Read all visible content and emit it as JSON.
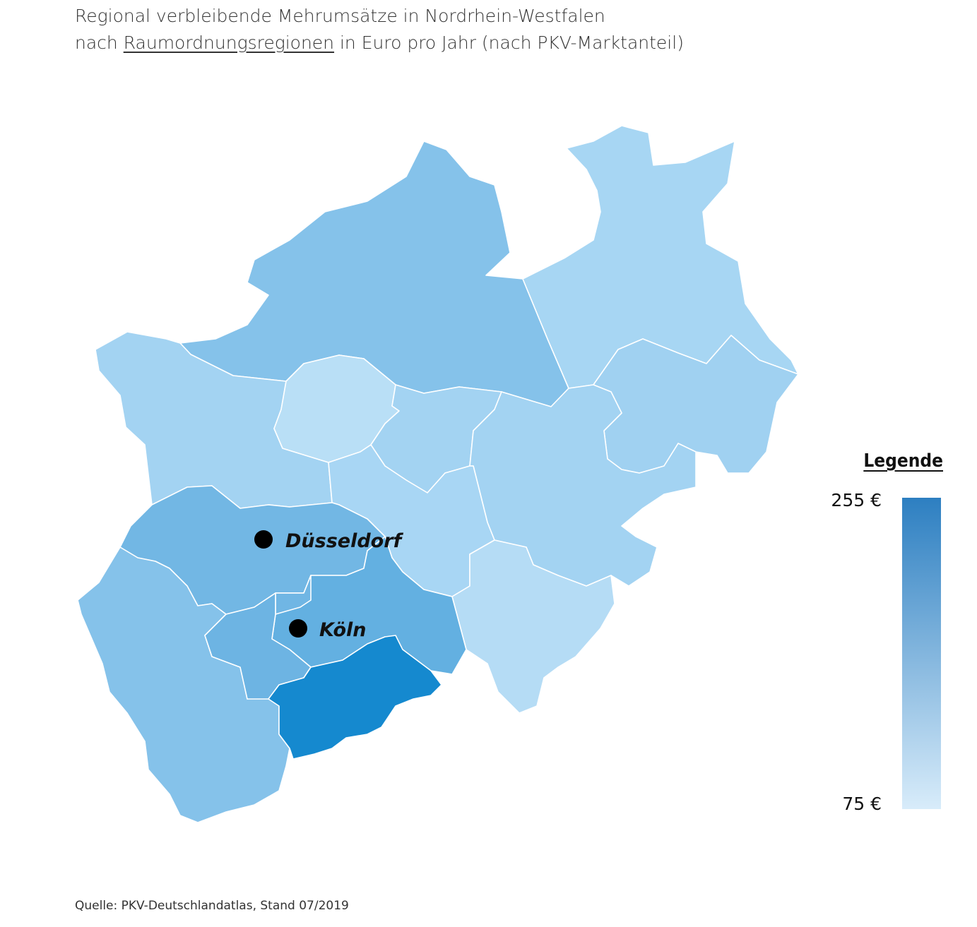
{
  "title": {
    "line1": "Regional verbleibende Mehrumsätze in Nordrhein-Westfalen",
    "line2_pre": "nach ",
    "line2_link": "Raumordnungsregionen",
    "line2_post": " in Euro pro Jahr (nach PKV-Marktanteil)"
  },
  "legend": {
    "title": "Legende",
    "max_label": "255 €",
    "min_label": "75 €",
    "color_max": "#2d7fc1",
    "color_min": "#d8ecfa"
  },
  "cities": [
    {
      "name": "Düsseldorf"
    },
    {
      "name": "Köln"
    }
  ],
  "source": "Quelle: PKV-Deutschlandatlas, Stand 07/2019",
  "colors": {
    "region_dark": "#1589cf",
    "region_medium": "#63b0e1",
    "region_mid": "#85c2ea",
    "region_light": "#a3d3f2",
    "region_lightest": "#b9dff6",
    "border": "#ffffff"
  }
}
